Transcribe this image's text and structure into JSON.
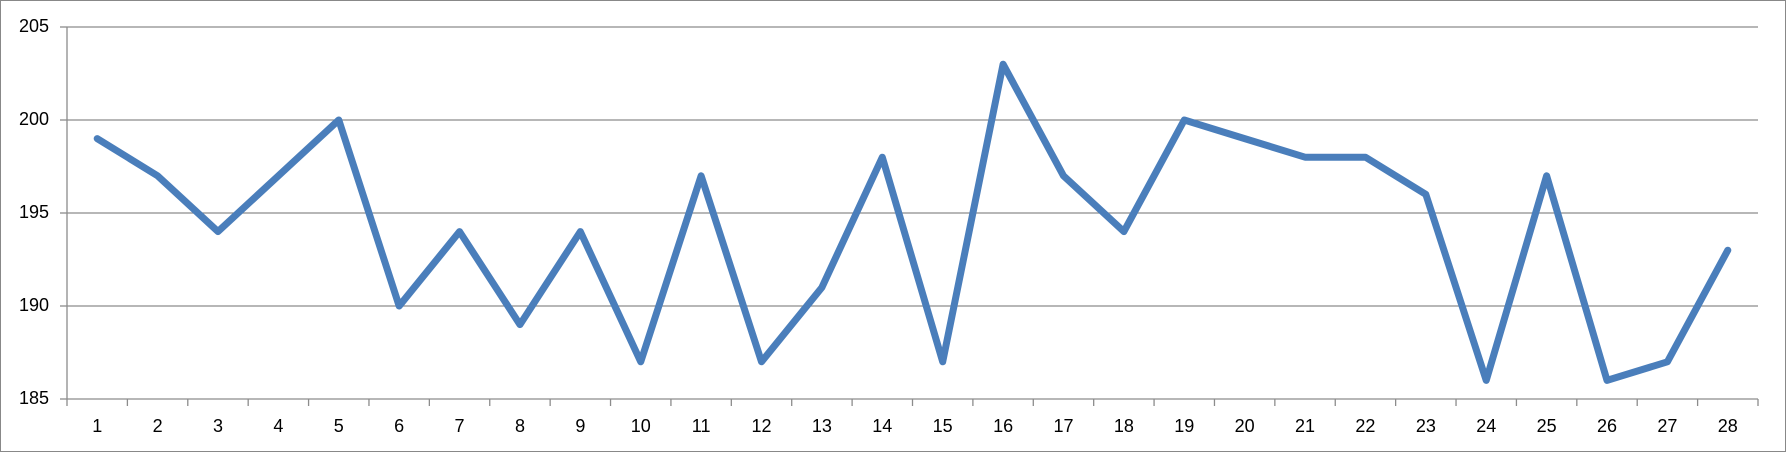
{
  "chart_data": {
    "type": "line",
    "categories": [
      "1",
      "2",
      "3",
      "4",
      "5",
      "6",
      "7",
      "8",
      "9",
      "10",
      "11",
      "12",
      "13",
      "14",
      "15",
      "16",
      "17",
      "18",
      "19",
      "20",
      "21",
      "22",
      "23",
      "24",
      "25",
      "26",
      "27",
      "28"
    ],
    "values": [
      199,
      197,
      194,
      197,
      200,
      190,
      194,
      189,
      194,
      187,
      197,
      187,
      191,
      198,
      187,
      203,
      197,
      194,
      200,
      199,
      198,
      198,
      196,
      186,
      197,
      186,
      187,
      193
    ],
    "color": "#4a7ebb",
    "ylim": [
      185,
      205
    ],
    "yticks": [
      185,
      190,
      195,
      200,
      205
    ],
    "grid": true
  }
}
